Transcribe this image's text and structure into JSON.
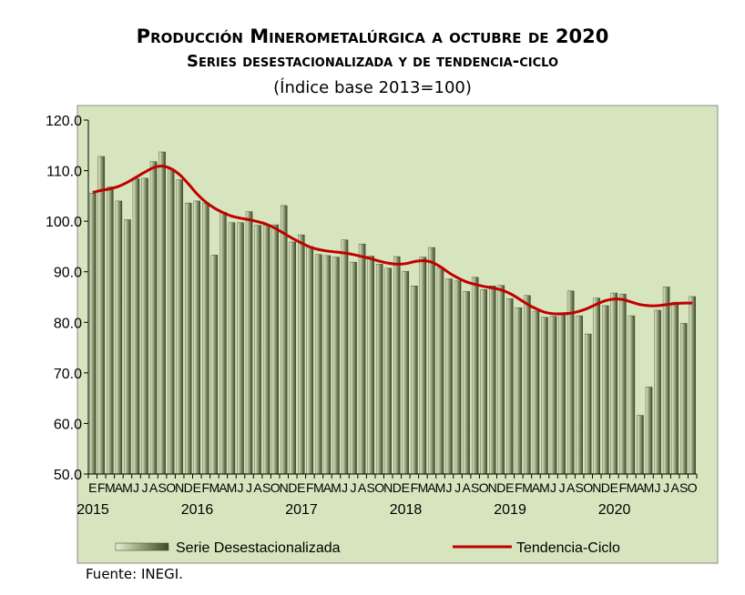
{
  "title_line1": "Producción Minerometalúrgica a octubre de 2020",
  "title_line2": "Series desestacionalizada y de tendencia-ciclo",
  "title_line3": "(Índice base 2013=100)",
  "source": "Fuente: INEGI.",
  "colors": {
    "plot_background": "#d6e5bd",
    "bar_fill_light": "#e8edd8",
    "bar_fill_dark": "#3e4a2c",
    "trend_line": "#c00000",
    "frame": "#8c8c8c"
  },
  "chart_data": {
    "type": "bar",
    "ylim": [
      50,
      120
    ],
    "y_ticks": [
      "50.0",
      "60.0",
      "70.0",
      "80.0",
      "90.0",
      "100.0",
      "110.0",
      "120.0"
    ],
    "grid": false,
    "legend_position": "bottom",
    "month_labels": [
      "E",
      "F",
      "M",
      "A",
      "M",
      "J",
      "J",
      "A",
      "S",
      "O",
      "N",
      "D"
    ],
    "year_labels": [
      "2015",
      "2016",
      "2017",
      "2018",
      "2019",
      "2020"
    ],
    "categories": [
      "2015-01",
      "2015-02",
      "2015-03",
      "2015-04",
      "2015-05",
      "2015-06",
      "2015-07",
      "2015-08",
      "2015-09",
      "2015-10",
      "2015-11",
      "2015-12",
      "2016-01",
      "2016-02",
      "2016-03",
      "2016-04",
      "2016-05",
      "2016-06",
      "2016-07",
      "2016-08",
      "2016-09",
      "2016-10",
      "2016-11",
      "2016-12",
      "2017-01",
      "2017-02",
      "2017-03",
      "2017-04",
      "2017-05",
      "2017-06",
      "2017-07",
      "2017-08",
      "2017-09",
      "2017-10",
      "2017-11",
      "2017-12",
      "2018-01",
      "2018-02",
      "2018-03",
      "2018-04",
      "2018-05",
      "2018-06",
      "2018-07",
      "2018-08",
      "2018-09",
      "2018-10",
      "2018-11",
      "2018-12",
      "2019-01",
      "2019-02",
      "2019-03",
      "2019-04",
      "2019-05",
      "2019-06",
      "2019-07",
      "2019-08",
      "2019-09",
      "2019-10",
      "2019-11",
      "2019-12",
      "2020-01",
      "2020-02",
      "2020-03",
      "2020-04",
      "2020-05",
      "2020-06",
      "2020-07",
      "2020-08",
      "2020-09",
      "2020-10"
    ],
    "series": [
      {
        "name": "Serie Desestacionalizada",
        "type": "bar",
        "values": [
          105.5,
          112.8,
          106.8,
          104.0,
          100.3,
          108.4,
          108.5,
          111.8,
          113.7,
          110.3,
          108.2,
          103.6,
          104.0,
          103.6,
          93.3,
          101.8,
          99.7,
          99.7,
          101.9,
          99.2,
          99.2,
          99.3,
          103.1,
          95.9,
          97.3,
          95.0,
          93.4,
          93.2,
          92.9,
          96.3,
          91.9,
          95.5,
          93.1,
          91.5,
          90.7,
          93.0,
          90.1,
          87.2,
          92.9,
          94.8,
          90.8,
          88.6,
          88.2,
          86.1,
          88.9,
          86.5,
          87.2,
          87.3,
          84.7,
          82.9,
          85.3,
          82.2,
          81.0,
          81.2,
          81.5,
          86.2,
          81.3,
          77.7,
          84.8,
          83.3,
          85.8,
          85.6,
          81.3,
          61.6,
          67.2,
          82.4,
          87.0,
          84.0,
          79.8,
          85.1
        ]
      },
      {
        "name": "Tendencia-Ciclo",
        "type": "line",
        "values": [
          105.7,
          106.1,
          106.4,
          106.9,
          107.7,
          108.7,
          109.7,
          110.6,
          110.9,
          110.4,
          109.2,
          107.4,
          105.4,
          103.8,
          102.6,
          101.7,
          101.0,
          100.6,
          100.3,
          99.9,
          99.4,
          98.6,
          97.6,
          96.6,
          95.7,
          94.9,
          94.4,
          94.1,
          93.9,
          93.7,
          93.4,
          93.0,
          92.6,
          92.1,
          91.7,
          91.5,
          91.6,
          92.0,
          92.2,
          91.9,
          91.0,
          89.8,
          88.8,
          88.0,
          87.5,
          87.1,
          86.8,
          86.4,
          85.7,
          84.7,
          83.6,
          82.7,
          82.0,
          81.7,
          81.7,
          81.8,
          82.2,
          82.8,
          83.6,
          84.3,
          84.6,
          84.5,
          84.0,
          83.5,
          83.3,
          83.3,
          83.5,
          83.7,
          83.8,
          83.8
        ]
      }
    ]
  }
}
